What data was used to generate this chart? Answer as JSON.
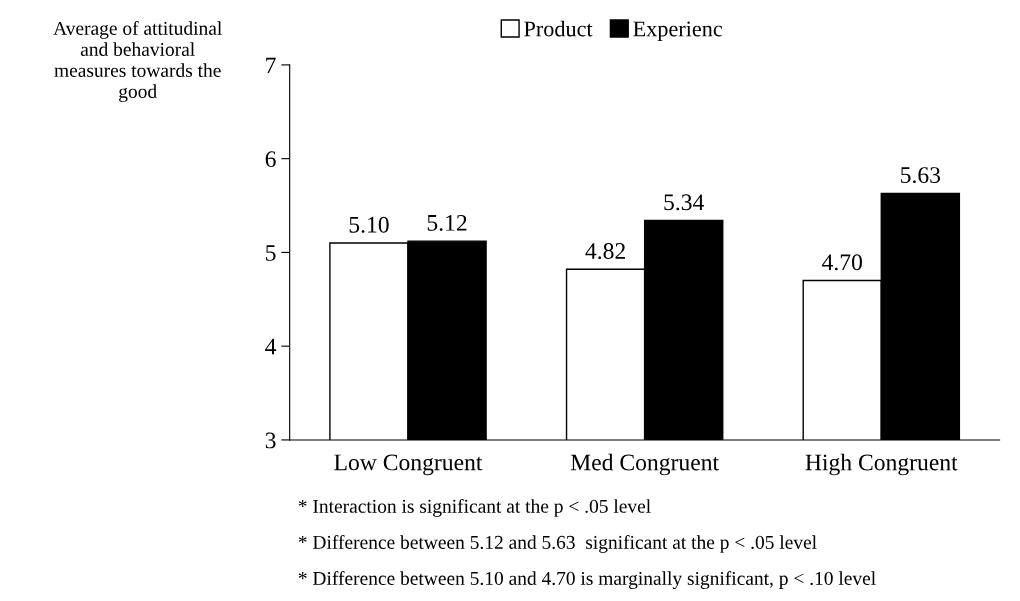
{
  "chart_data": {
    "type": "bar",
    "ylabel": "Average of attitudinal\nand behavioral\nmeasures towards the\ngood",
    "categories": [
      "Low Congruent",
      "Med Congruent",
      "High Congruent"
    ],
    "series": [
      {
        "name": "Product",
        "color": "#ffffff",
        "values": [
          5.1,
          4.82,
          4.7
        ],
        "value_labels": [
          "5.10",
          "4.82",
          "4.70"
        ]
      },
      {
        "name": "Experienc",
        "color": "#000000",
        "values": [
          5.12,
          5.34,
          5.63
        ],
        "value_labels": [
          "5.12",
          "5.34",
          "5.63"
        ]
      }
    ],
    "ylim": [
      3,
      7
    ],
    "yticks": [
      3,
      4,
      5,
      6,
      7
    ],
    "grid": false,
    "legend": "top",
    "annotations": [
      "* Interaction is significant at the p < .05 level",
      "* Difference between 5.12 and 5.63  significant at the p < .05 level",
      "* Difference between 5.10 and 4.70 is marginally significant, p < .10 level"
    ]
  }
}
